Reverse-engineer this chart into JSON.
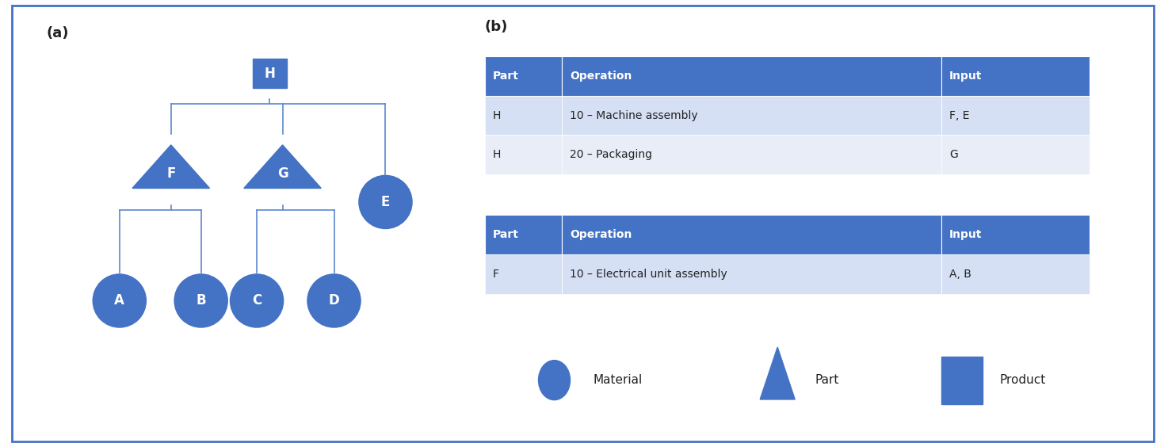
{
  "blue_dark": "#4472C4",
  "blue_light": "#D6E0F5",
  "blue_header": "#4472C4",
  "border_color": "#4472C4",
  "text_white": "#FFFFFF",
  "text_dark": "#222222",
  "line_color": "#5B88D0",
  "background": "#FFFFFF",
  "table1": {
    "headers": [
      "Part",
      "Operation",
      "Input"
    ],
    "rows": [
      [
        "H",
        "10 – Machine assembly",
        "F, E"
      ],
      [
        "H",
        "20 – Packaging",
        "G"
      ]
    ]
  },
  "table2": {
    "headers": [
      "Part",
      "Operation",
      "Input"
    ],
    "rows": [
      [
        "F",
        "10 – Electrical unit assembly",
        "A, B"
      ]
    ]
  },
  "label_a": "(a)",
  "label_b": "(b)",
  "legend": {
    "circle_label": "Material",
    "triangle_label": "Part",
    "square_label": "Product"
  }
}
